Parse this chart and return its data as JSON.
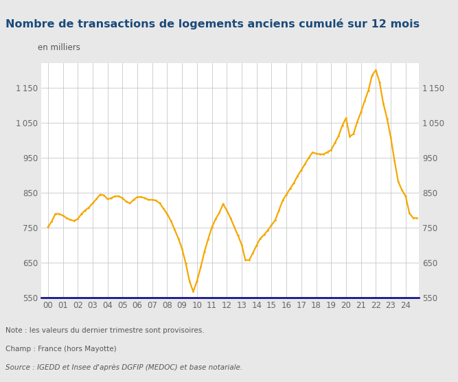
{
  "title": "Nombre de transactions de logements anciens cumulé sur 12 mois",
  "subtitle": "en milliers",
  "note1": "Note : les valeurs du dernier trimestre sont provisoires.",
  "note2": "Champ : France (hors Mayotte)",
  "note3": "Source : IGEDD et Insee d'après DGFIP (MEDOC) et base notariale.",
  "line_color": "#f5a800",
  "plot_bg": "#ffffff",
  "fig_bg": "#e8e8e8",
  "title_color": "#1a4a7a",
  "note_color": "#555555",
  "axis_line_color": "#000080",
  "grid_color": "#c8c8c8",
  "tick_color": "#666666",
  "ylim": [
    550,
    1220
  ],
  "yticks": [
    550,
    650,
    750,
    850,
    950,
    1050,
    1150
  ],
  "x_labels": [
    "00",
    "01",
    "02",
    "03",
    "04",
    "05",
    "06",
    "07",
    "08",
    "09",
    "10",
    "11",
    "12",
    "13",
    "14",
    "15",
    "16",
    "17",
    "18",
    "19",
    "20",
    "21",
    "22",
    "23",
    "24"
  ],
  "quarterly_data": [
    [
      2000.0,
      752
    ],
    [
      2000.25,
      768
    ],
    [
      2000.5,
      790
    ],
    [
      2000.75,
      790
    ],
    [
      2001.0,
      785
    ],
    [
      2001.25,
      778
    ],
    [
      2001.5,
      773
    ],
    [
      2001.75,
      770
    ],
    [
      2002.0,
      775
    ],
    [
      2002.25,
      790
    ],
    [
      2002.5,
      800
    ],
    [
      2002.75,
      808
    ],
    [
      2003.0,
      820
    ],
    [
      2003.25,
      832
    ],
    [
      2003.5,
      845
    ],
    [
      2003.75,
      843
    ],
    [
      2004.0,
      832
    ],
    [
      2004.25,
      835
    ],
    [
      2004.5,
      840
    ],
    [
      2004.75,
      840
    ],
    [
      2005.0,
      835
    ],
    [
      2005.25,
      825
    ],
    [
      2005.5,
      820
    ],
    [
      2005.75,
      830
    ],
    [
      2006.0,
      838
    ],
    [
      2006.25,
      838
    ],
    [
      2006.5,
      835
    ],
    [
      2006.75,
      830
    ],
    [
      2007.0,
      830
    ],
    [
      2007.25,
      828
    ],
    [
      2007.5,
      820
    ],
    [
      2007.75,
      805
    ],
    [
      2008.0,
      790
    ],
    [
      2008.25,
      770
    ],
    [
      2008.5,
      745
    ],
    [
      2008.75,
      720
    ],
    [
      2009.0,
      690
    ],
    [
      2009.25,
      648
    ],
    [
      2009.5,
      598
    ],
    [
      2009.75,
      568
    ],
    [
      2010.0,
      598
    ],
    [
      2010.25,
      638
    ],
    [
      2010.5,
      682
    ],
    [
      2010.75,
      718
    ],
    [
      2011.0,
      752
    ],
    [
      2011.25,
      775
    ],
    [
      2011.5,
      793
    ],
    [
      2011.75,
      818
    ],
    [
      2012.0,
      800
    ],
    [
      2012.25,
      778
    ],
    [
      2012.5,
      753
    ],
    [
      2012.75,
      728
    ],
    [
      2013.0,
      702
    ],
    [
      2013.25,
      658
    ],
    [
      2013.5,
      658
    ],
    [
      2013.75,
      678
    ],
    [
      2014.0,
      700
    ],
    [
      2014.25,
      720
    ],
    [
      2014.5,
      730
    ],
    [
      2014.75,
      743
    ],
    [
      2015.0,
      758
    ],
    [
      2015.25,
      772
    ],
    [
      2015.5,
      800
    ],
    [
      2015.75,
      828
    ],
    [
      2016.0,
      845
    ],
    [
      2016.25,
      862
    ],
    [
      2016.5,
      878
    ],
    [
      2016.75,
      898
    ],
    [
      2017.0,
      915
    ],
    [
      2017.25,
      932
    ],
    [
      2017.5,
      950
    ],
    [
      2017.75,
      965
    ],
    [
      2018.0,
      962
    ],
    [
      2018.25,
      960
    ],
    [
      2018.5,
      960
    ],
    [
      2018.75,
      966
    ],
    [
      2019.0,
      972
    ],
    [
      2019.25,
      992
    ],
    [
      2019.5,
      1012
    ],
    [
      2019.75,
      1042
    ],
    [
      2020.0,
      1063
    ],
    [
      2020.25,
      1010
    ],
    [
      2020.5,
      1018
    ],
    [
      2020.75,
      1052
    ],
    [
      2021.0,
      1080
    ],
    [
      2021.25,
      1112
    ],
    [
      2021.5,
      1142
    ],
    [
      2021.75,
      1185
    ],
    [
      2022.0,
      1200
    ],
    [
      2022.25,
      1165
    ],
    [
      2022.5,
      1105
    ],
    [
      2022.75,
      1062
    ],
    [
      2023.0,
      1008
    ],
    [
      2023.25,
      942
    ],
    [
      2023.5,
      882
    ],
    [
      2023.75,
      858
    ],
    [
      2024.0,
      840
    ],
    [
      2024.25,
      792
    ],
    [
      2024.5,
      778
    ],
    [
      2024.75,
      778
    ]
  ]
}
